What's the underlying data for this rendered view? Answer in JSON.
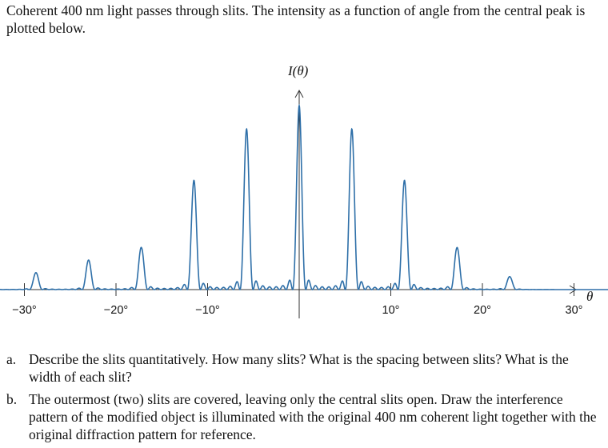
{
  "intro": "Coherent 400 nm light passes through slits.  The intensity as a function of angle from the central peak is plotted below.",
  "questions": [
    {
      "marker": "a.",
      "text": "Describe the slits quantitatively.  How many slits?  What is the spacing between slits?  What is the width of each slit?"
    },
    {
      "marker": "b.",
      "text": "The outermost (two) slits are covered, leaving only the central slits open.  Draw the interference pattern of the modified object is illuminated with the original 400 nm coherent light together with the original diffraction pattern for reference."
    }
  ],
  "chart_data": {
    "type": "line",
    "xlabel": "θ",
    "ylabel": "I(θ)",
    "xlim": [
      -35,
      38
    ],
    "ylim": [
      0,
      1
    ],
    "xticks": [
      -30,
      -20,
      -10,
      10,
      20,
      30
    ],
    "xtick_labels": [
      "−30°",
      "−20°",
      "−10°",
      "10°",
      "20°",
      "30°"
    ],
    "principal_maxima": [
      {
        "x": -30.6,
        "y": 0.07
      },
      {
        "x": -17.2,
        "y": 0.23
      },
      {
        "x": -11.4,
        "y": 0.6
      },
      {
        "x": -5.6,
        "y": 0.88
      },
      {
        "x": 0,
        "y": 1.0
      },
      {
        "x": 5.6,
        "y": 0.88
      },
      {
        "x": 11.4,
        "y": 0.6
      },
      {
        "x": 17.2,
        "y": 0.23
      },
      {
        "x": 23.0,
        "y": 0.07
      }
    ],
    "grid": false
  }
}
